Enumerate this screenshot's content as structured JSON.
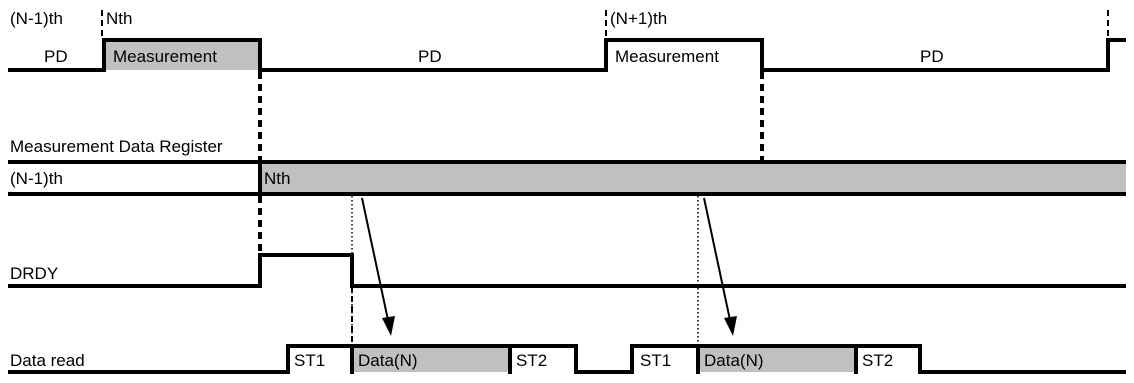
{
  "timing": {
    "prev_label": "(N-1)th",
    "nth_label": "Nth",
    "next_label": "(N+1)th",
    "pd_label": "PD",
    "measurement_label": "Measurement"
  },
  "register": {
    "title": "Measurement Data Register",
    "prev_value": "(N-1)th",
    "nth_value": "Nth"
  },
  "drdy": {
    "label": "DRDY"
  },
  "data_read": {
    "label": "Data read",
    "st1": "ST1",
    "data": "Data(N)",
    "st2": "ST2"
  },
  "colors": {
    "fill_gray": "#c0c0c0",
    "line": "#000000"
  }
}
